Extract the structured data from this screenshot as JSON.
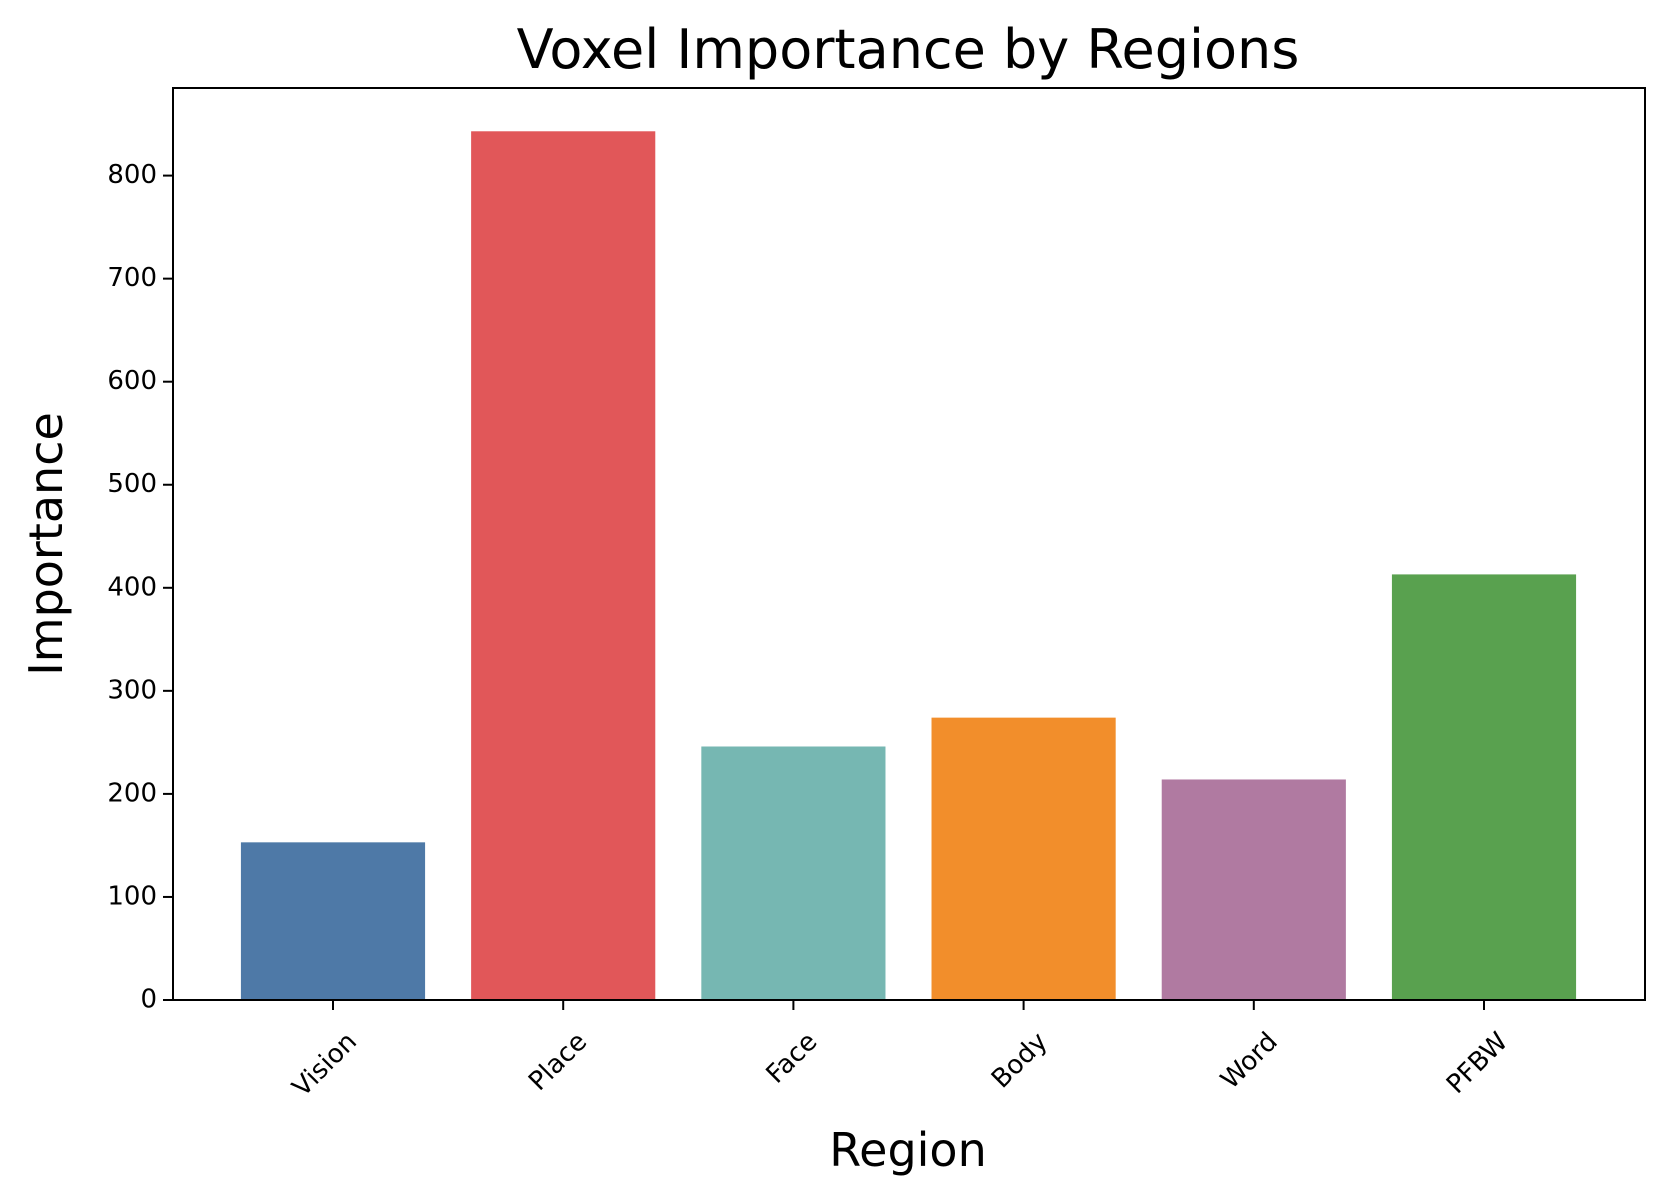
{
  "chart_data": {
    "type": "bar",
    "title": "Voxel Importance by Regions",
    "xlabel": "Region",
    "ylabel": "Importance",
    "categories": [
      "Vision",
      "Place",
      "Face",
      "Body",
      "Word",
      "PFBW"
    ],
    "values": [
      153,
      843,
      246,
      274,
      214,
      413
    ],
    "colors": [
      "#4e79a7",
      "#e15759",
      "#76b7b2",
      "#f28e2b",
      "#b07aa1",
      "#59a14f"
    ],
    "yticks": [
      0,
      100,
      200,
      300,
      400,
      500,
      600,
      700,
      800
    ],
    "ylim": [
      0,
      885
    ],
    "grid": false,
    "legend": "none"
  }
}
